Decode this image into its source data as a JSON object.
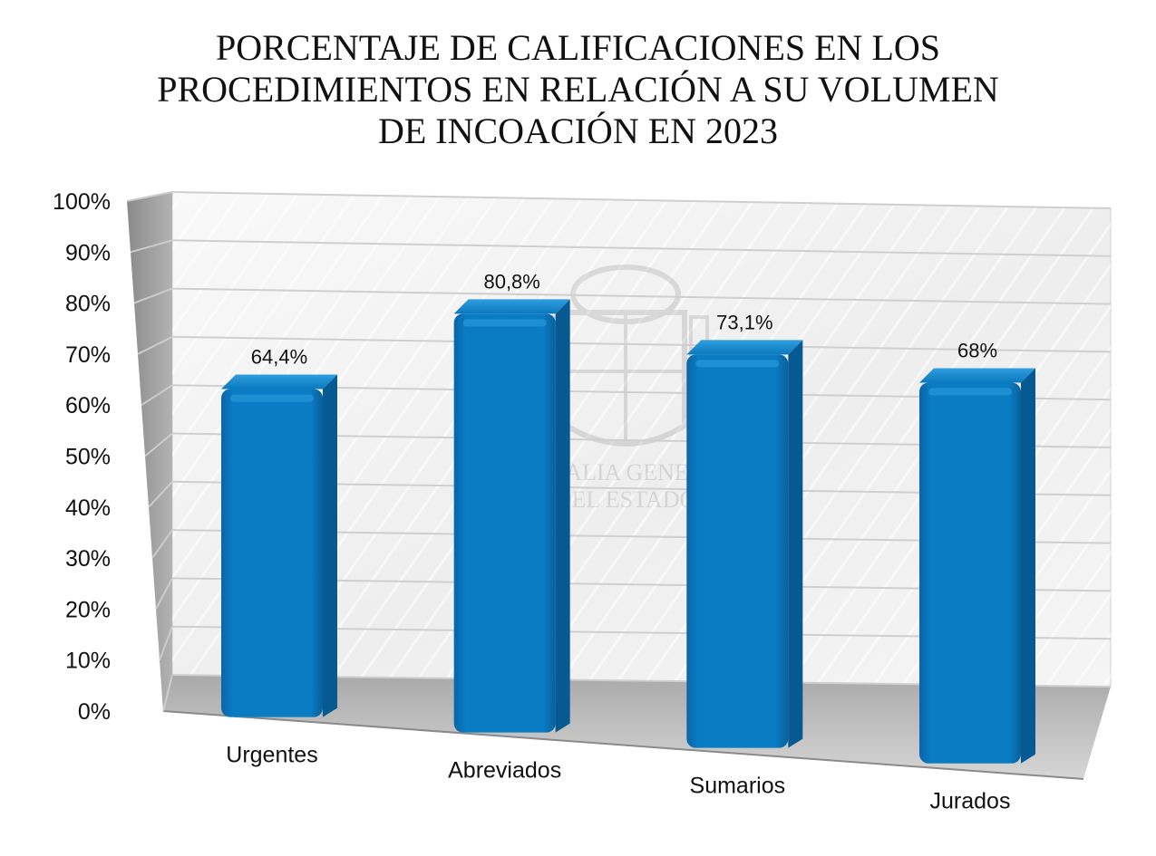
{
  "chart_data": {
    "type": "bar",
    "title_lines": [
      "PORCENTAJE DE CALIFICACIONES EN LOS",
      "PROCEDIMIENTOS EN RELACIÓN A SU VOLUMEN",
      "DE INCOACIÓN EN 2023"
    ],
    "categories": [
      "Urgentes",
      "Abreviados",
      "Sumarios",
      "Jurados"
    ],
    "values": [
      64.4,
      80.8,
      73.1,
      68
    ],
    "data_labels": [
      "64,4%",
      "80,8%",
      "73,1%",
      "68%"
    ],
    "y_ticks": [
      0,
      10,
      20,
      30,
      40,
      50,
      60,
      70,
      80,
      90,
      100
    ],
    "y_tick_labels": [
      "0%",
      "10%",
      "20%",
      "30%",
      "40%",
      "50%",
      "60%",
      "70%",
      "80%",
      "90%",
      "100%"
    ],
    "ylim": [
      0,
      100
    ],
    "grid": true,
    "style": "3d-perspective",
    "bar_color": "#0a7cc4",
    "watermark_text": [
      "FISCALIA GENERAL",
      "DEL ESTADO"
    ]
  }
}
